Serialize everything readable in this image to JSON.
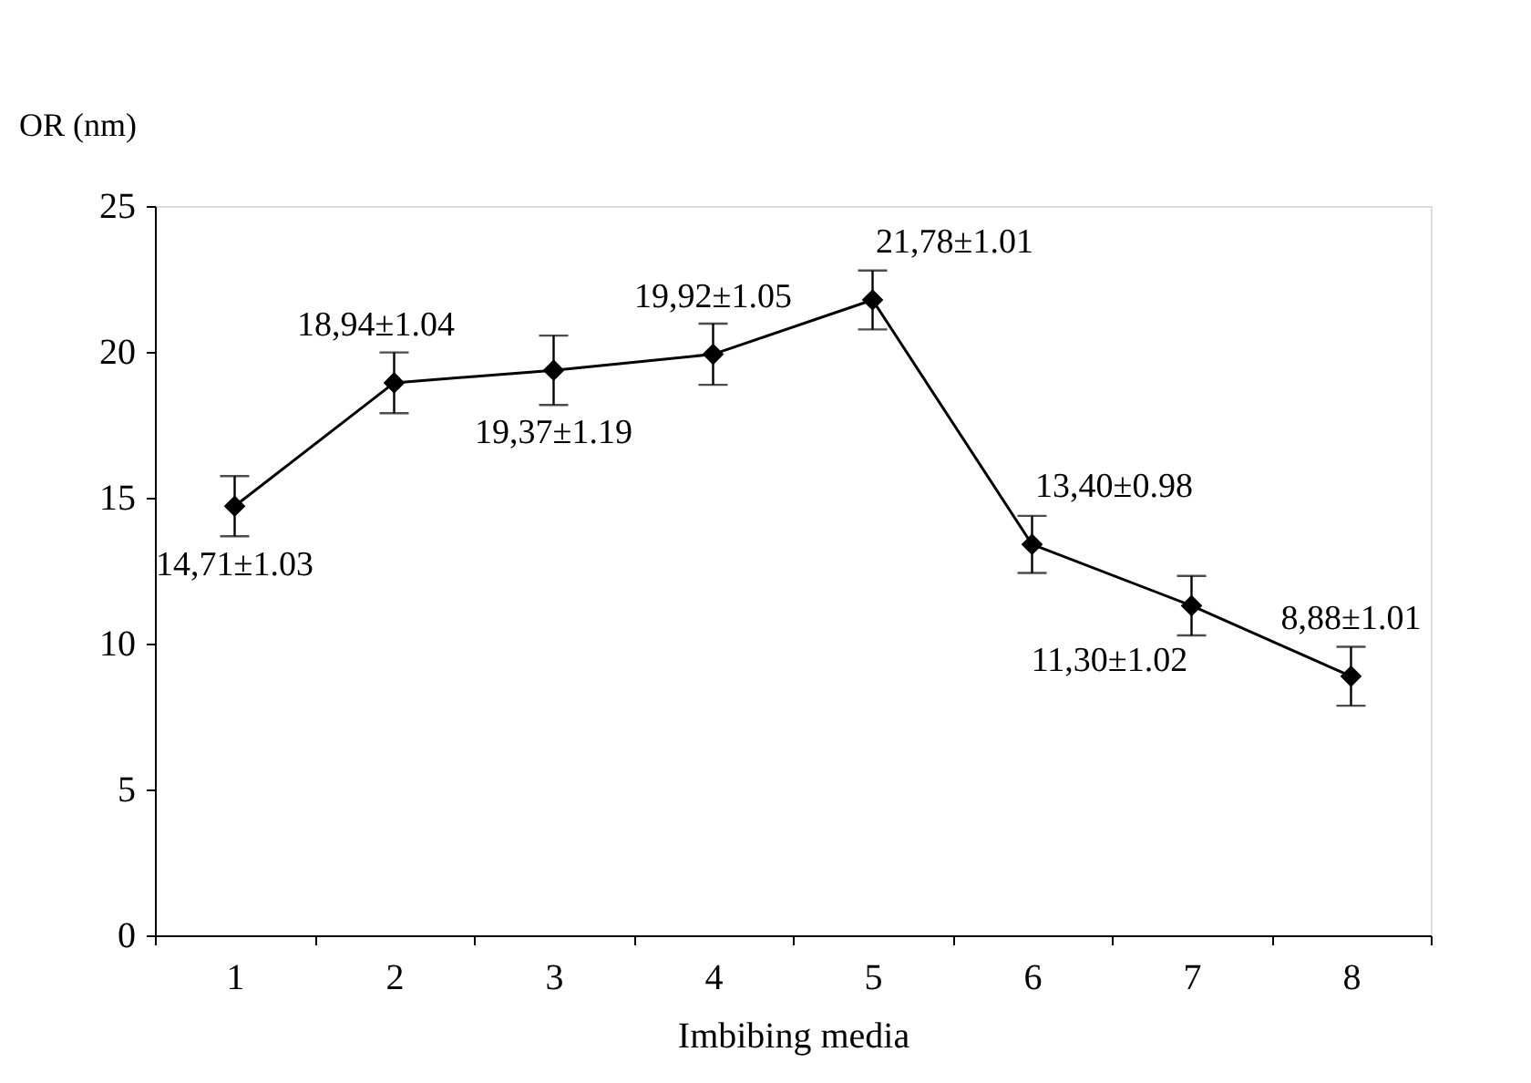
{
  "chart_data": {
    "type": "line",
    "xlabel": "Imbibing media",
    "ylabel": "OR (nm)",
    "categories": [
      "1",
      "2",
      "3",
      "4",
      "5",
      "6",
      "7",
      "8"
    ],
    "series": [
      {
        "color": "#000000",
        "values": [
          14.71,
          18.94,
          19.37,
          19.92,
          21.78,
          13.4,
          11.3,
          8.88
        ],
        "errors": [
          1.03,
          1.04,
          1.19,
          1.05,
          1.01,
          0.98,
          1.02,
          1.01
        ],
        "value_labels": [
          "14,71±1.03",
          "18,94±1.04",
          "19,37±1.19",
          "19,92±1.05",
          "21,78±1.01",
          "13,40±0.98",
          "11,30±1.02",
          "8,88±1.01"
        ]
      }
    ],
    "ylim": [
      0,
      25
    ],
    "yticks": [
      0,
      5,
      10,
      15,
      20,
      25
    ],
    "grid": false,
    "marker": "diamond",
    "line_style": "solid"
  }
}
